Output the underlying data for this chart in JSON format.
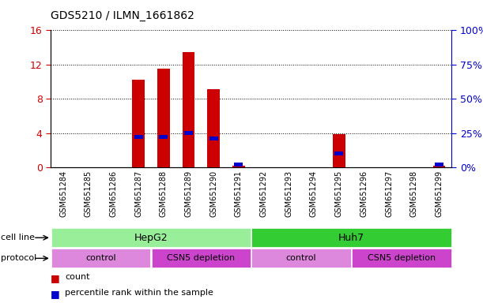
{
  "title": "GDS5210 / ILMN_1661862",
  "samples": [
    "GSM651284",
    "GSM651285",
    "GSM651286",
    "GSM651287",
    "GSM651288",
    "GSM651289",
    "GSM651290",
    "GSM651291",
    "GSM651292",
    "GSM651293",
    "GSM651294",
    "GSM651295",
    "GSM651296",
    "GSM651297",
    "GSM651298",
    "GSM651299"
  ],
  "counts": [
    0,
    0,
    0,
    10.2,
    11.5,
    13.5,
    9.1,
    0.22,
    0,
    0,
    0,
    3.9,
    0,
    0,
    0,
    0.18
  ],
  "percentiles": [
    0,
    0,
    0,
    22,
    22,
    25,
    21,
    2,
    0,
    0,
    0,
    10,
    0,
    0,
    0,
    2
  ],
  "ylim_left": [
    0,
    16
  ],
  "ylim_right": [
    0,
    100
  ],
  "yticks_left": [
    0,
    4,
    8,
    12,
    16
  ],
  "yticks_right": [
    0,
    25,
    50,
    75,
    100
  ],
  "bar_color": "#cc0000",
  "percentile_color": "#0000cc",
  "bar_width": 0.5,
  "cell_line_hepg2": {
    "label": "HepG2",
    "start": 0,
    "end": 7,
    "color": "#99ee99"
  },
  "cell_line_huh7": {
    "label": "Huh7",
    "start": 8,
    "end": 15,
    "color": "#33cc33"
  },
  "protocol_control1": {
    "label": "control",
    "start": 0,
    "end": 3,
    "color": "#dd88dd"
  },
  "protocol_csn5_1": {
    "label": "CSN5 depletion",
    "start": 4,
    "end": 7,
    "color": "#cc44cc"
  },
  "protocol_control2": {
    "label": "control",
    "start": 8,
    "end": 11,
    "color": "#dd88dd"
  },
  "protocol_csn5_2": {
    "label": "CSN5 depletion",
    "start": 12,
    "end": 15,
    "color": "#cc44cc"
  },
  "bg_color": "#ffffff",
  "axis_bg_color": "#ffffff",
  "grid_color": "#000000",
  "left_axis_color": "#cc0000",
  "right_axis_color": "#0000cc",
  "legend_count_label": "count",
  "legend_pct_label": "percentile rank within the sample"
}
